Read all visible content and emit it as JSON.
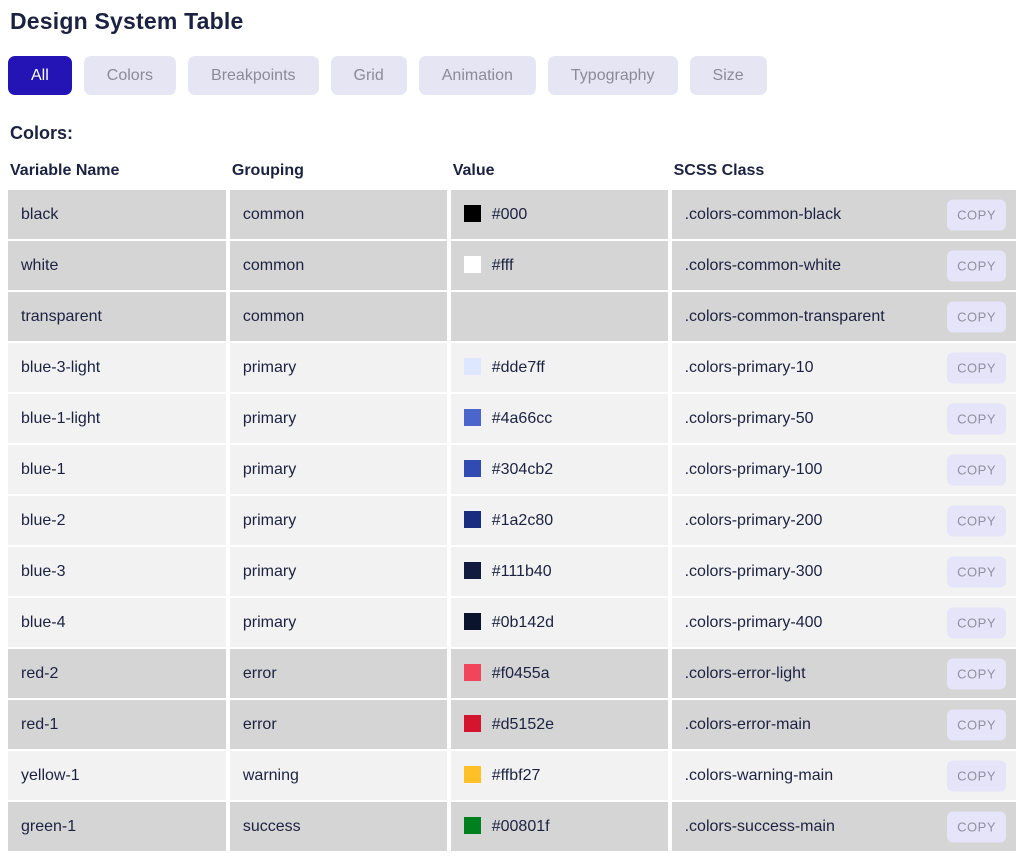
{
  "page": {
    "title": "Design System Table",
    "section_heading": "Colors:"
  },
  "tabs": [
    {
      "label": "All",
      "active": true
    },
    {
      "label": "Colors",
      "active": false
    },
    {
      "label": "Breakpoints",
      "active": false
    },
    {
      "label": "Grid",
      "active": false
    },
    {
      "label": "Animation",
      "active": false
    },
    {
      "label": "Typography",
      "active": false
    },
    {
      "label": "Size",
      "active": false
    }
  ],
  "table": {
    "headers": [
      "Variable Name",
      "Grouping",
      "Value",
      "SCSS Class"
    ],
    "copy_label": "COPY",
    "rows": [
      {
        "variable": "black",
        "grouping": "common",
        "value": "#000",
        "scss_class": ".colors-common-black",
        "shade": "gray"
      },
      {
        "variable": "white",
        "grouping": "common",
        "value": "#fff",
        "scss_class": ".colors-common-white",
        "shade": "gray"
      },
      {
        "variable": "transparent",
        "grouping": "common",
        "value": "",
        "scss_class": ".colors-common-transparent",
        "shade": "gray"
      },
      {
        "variable": "blue-3-light",
        "grouping": "primary",
        "value": "#dde7ff",
        "scss_class": ".colors-primary-10",
        "shade": "light"
      },
      {
        "variable": "blue-1-light",
        "grouping": "primary",
        "value": "#4a66cc",
        "scss_class": ".colors-primary-50",
        "shade": "light"
      },
      {
        "variable": "blue-1",
        "grouping": "primary",
        "value": "#304cb2",
        "scss_class": ".colors-primary-100",
        "shade": "light"
      },
      {
        "variable": "blue-2",
        "grouping": "primary",
        "value": "#1a2c80",
        "scss_class": ".colors-primary-200",
        "shade": "light"
      },
      {
        "variable": "blue-3",
        "grouping": "primary",
        "value": "#111b40",
        "scss_class": ".colors-primary-300",
        "shade": "light"
      },
      {
        "variable": "blue-4",
        "grouping": "primary",
        "value": "#0b142d",
        "scss_class": ".colors-primary-400",
        "shade": "light"
      },
      {
        "variable": "red-2",
        "grouping": "error",
        "value": "#f0455a",
        "scss_class": ".colors-error-light",
        "shade": "gray"
      },
      {
        "variable": "red-1",
        "grouping": "error",
        "value": "#d5152e",
        "scss_class": ".colors-error-main",
        "shade": "gray"
      },
      {
        "variable": "yellow-1",
        "grouping": "warning",
        "value": "#ffbf27",
        "scss_class": ".colors-warning-main",
        "shade": "light"
      },
      {
        "variable": "green-1",
        "grouping": "success",
        "value": "#00801f",
        "scss_class": ".colors-success-main",
        "shade": "gray"
      }
    ]
  },
  "colors": {
    "accent": "#2413b5",
    "tab_bg": "#e6e5f4",
    "tab_text": "#8b8b97",
    "row_gray": "#d5d5d5",
    "row_light": "#f2f2f2",
    "text_dark": "#1b2240",
    "copy_bg": "#e6e4f8",
    "copy_text": "#8f8f9e"
  }
}
